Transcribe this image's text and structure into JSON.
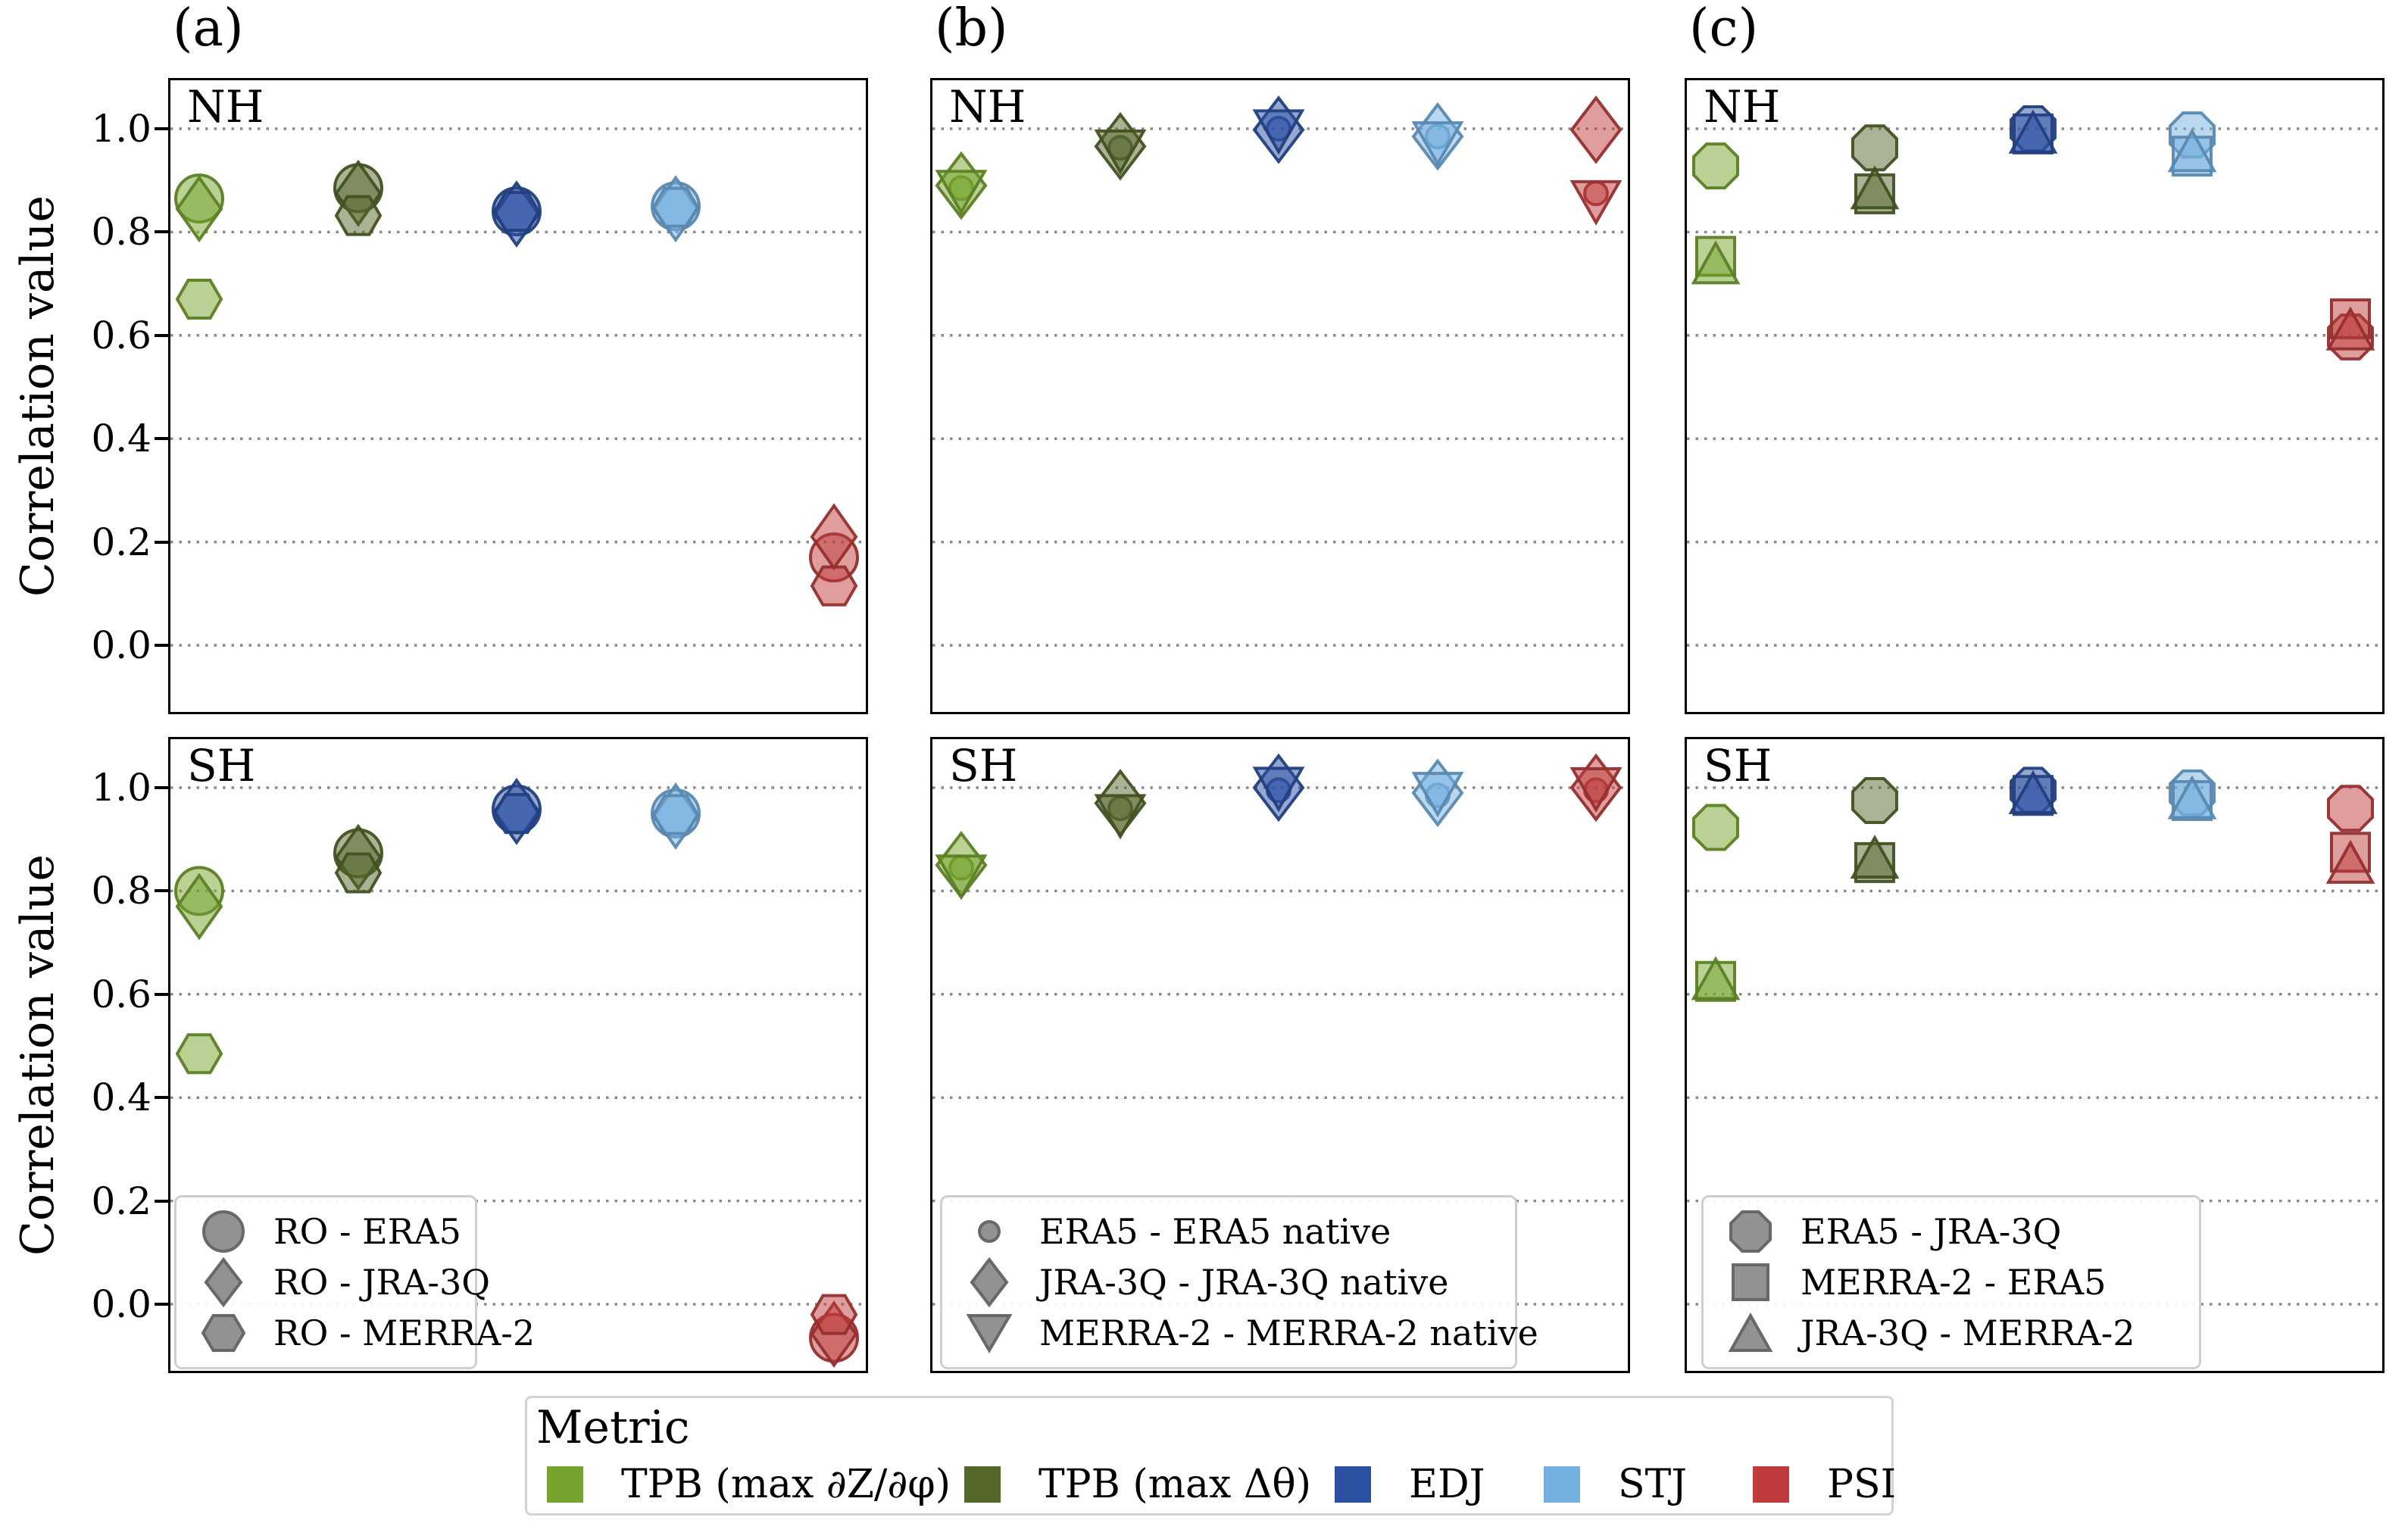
{
  "figure": {
    "ylabel": "Correlation value",
    "columns": [
      {
        "label": "(a)"
      },
      {
        "label": "(b)"
      },
      {
        "label": "(c)"
      }
    ]
  },
  "yaxis": {
    "ticks": [
      {
        "label": "1.0",
        "value": 1.0
      },
      {
        "label": "0.8",
        "value": 0.8
      },
      {
        "label": "0.6",
        "value": 0.6
      },
      {
        "label": "0.4",
        "value": 0.4
      },
      {
        "label": "0.2",
        "value": 0.2
      },
      {
        "label": "0.0",
        "value": 0.0
      }
    ]
  },
  "colors": {
    "tpb_phi": "#76A32D",
    "tpb_theta": "#55682B",
    "edj": "#2B51A3",
    "stj": "#74AFE0",
    "psi": "#BF3C3C",
    "legend_gray": "#7f7f7f",
    "grid": "#8a8a8a"
  },
  "marker_legends": {
    "a": [
      {
        "marker": "circle",
        "label": "RO - ERA5"
      },
      {
        "marker": "diamond",
        "label": "RO - JRA-3Q"
      },
      {
        "marker": "hexagon",
        "label": "RO - MERRA-2"
      }
    ],
    "b": [
      {
        "marker": "circle_small",
        "label": "ERA5 - ERA5 native"
      },
      {
        "marker": "diamond",
        "label": "JRA-3Q - JRA-3Q native"
      },
      {
        "marker": "triangle_down",
        "label": "MERRA-2 - MERRA-2 native"
      }
    ],
    "c": [
      {
        "marker": "octagon",
        "label": "ERA5 - JRA-3Q"
      },
      {
        "marker": "square",
        "label": "MERRA-2 - ERA5"
      },
      {
        "marker": "triangle_up",
        "label": "JRA-3Q - MERRA-2"
      }
    ]
  },
  "metric_legend": {
    "title": "Metric",
    "items": [
      {
        "label": "TPB (max ∂Z/∂φ)",
        "color": "#76A32D"
      },
      {
        "label": "TPB (max Δθ)",
        "color": "#55682B"
      },
      {
        "label": "EDJ",
        "color": "#2B51A3"
      },
      {
        "label": "STJ",
        "color": "#74AFE0"
      },
      {
        "label": "PSI",
        "color": "#BF3C3C"
      }
    ]
  },
  "chart_data": [
    {
      "type": "scatter",
      "panel": "(a)",
      "hemisphere": "NH",
      "x_categories": [
        "TPB (max ∂Z/∂φ)",
        "TPB (max Δθ)",
        "EDJ",
        "STJ",
        "PSI"
      ],
      "ylim": [
        -0.13,
        1.1
      ],
      "grid": "horizontal dotted",
      "series": [
        {
          "name": "RO - ERA5",
          "marker": "circle",
          "size": [
            62,
            62
          ],
          "values": [
            0.865,
            0.885,
            0.84,
            0.85,
            0.17
          ]
        },
        {
          "name": "RO - JRA-3Q",
          "marker": "diamond",
          "size": [
            58,
            82
          ],
          "values": [
            0.845,
            0.875,
            0.835,
            0.845,
            0.21
          ]
        },
        {
          "name": "RO - MERRA-2",
          "marker": "hexagon",
          "size": [
            58,
            50
          ],
          "values": [
            0.67,
            0.832,
            0.84,
            0.848,
            0.115
          ]
        }
      ]
    },
    {
      "type": "scatter",
      "panel": "(b)",
      "hemisphere": "NH",
      "x_categories": [
        "TPB (max ∂Z/∂φ)",
        "TPB (max Δθ)",
        "EDJ",
        "STJ",
        "PSI"
      ],
      "ylim": [
        -0.13,
        1.1
      ],
      "grid": "horizontal dotted",
      "series": [
        {
          "name": "ERA5 - ERA5 native",
          "marker": "circle_small",
          "size": [
            30,
            30
          ],
          "values": [
            0.885,
            0.963,
            1.0,
            0.985,
            0.875
          ]
        },
        {
          "name": "JRA-3Q - JRA-3Q native",
          "marker": "diamond",
          "size": [
            64,
            84
          ],
          "values": [
            0.89,
            0.966,
            0.998,
            0.985,
            0.998
          ]
        },
        {
          "name": "MERRA-2 - MERRA-2 native",
          "marker": "triangle_down",
          "size": [
            62,
            54
          ],
          "values": [
            0.878,
            0.956,
            0.995,
            0.972,
            0.858
          ]
        }
      ]
    },
    {
      "type": "scatter",
      "panel": "(c)",
      "hemisphere": "NH",
      "x_categories": [
        "TPB (max ∂Z/∂φ)",
        "TPB (max Δθ)",
        "EDJ",
        "STJ",
        "PSI"
      ],
      "ylim": [
        -0.13,
        1.1
      ],
      "grid": "horizontal dotted",
      "series": [
        {
          "name": "ERA5 - JRA-3Q",
          "marker": "octagon",
          "size": [
            58,
            58
          ],
          "values": [
            0.928,
            0.963,
            1.0,
            0.988,
            0.597
          ]
        },
        {
          "name": "MERRA-2 - ERA5",
          "marker": "square",
          "size": [
            50,
            50
          ],
          "values": [
            0.753,
            0.874,
            0.99,
            0.947,
            0.632
          ]
        },
        {
          "name": "JRA-3Q - MERRA-2",
          "marker": "triangle_up",
          "size": [
            58,
            52
          ],
          "values": [
            0.74,
            0.885,
            0.993,
            0.957,
            0.612
          ]
        }
      ]
    },
    {
      "type": "scatter",
      "panel": "(a)",
      "hemisphere": "SH",
      "x_categories": [
        "TPB (max ∂Z/∂φ)",
        "TPB (max Δθ)",
        "EDJ",
        "STJ",
        "PSI"
      ],
      "ylim": [
        -0.13,
        1.1
      ],
      "grid": "horizontal dotted",
      "series": [
        {
          "name": "RO - ERA5",
          "marker": "circle",
          "size": [
            62,
            62
          ],
          "values": [
            0.8,
            0.873,
            0.958,
            0.95,
            -0.065
          ]
        },
        {
          "name": "RO - JRA-3Q",
          "marker": "diamond",
          "size": [
            58,
            82
          ],
          "values": [
            0.77,
            0.865,
            0.954,
            0.945,
            -0.058
          ]
        },
        {
          "name": "RO - MERRA-2",
          "marker": "hexagon",
          "size": [
            58,
            50
          ],
          "values": [
            0.485,
            0.835,
            0.95,
            0.948,
            -0.02
          ]
        }
      ]
    },
    {
      "type": "scatter",
      "panel": "(b)",
      "hemisphere": "SH",
      "x_categories": [
        "TPB (max ∂Z/∂φ)",
        "TPB (max Δθ)",
        "EDJ",
        "STJ",
        "PSI"
      ],
      "ylim": [
        -0.13,
        1.1
      ],
      "grid": "horizontal dotted",
      "series": [
        {
          "name": "ERA5 - ERA5 native",
          "marker": "circle_small",
          "size": [
            30,
            30
          ],
          "values": [
            0.845,
            0.96,
            0.995,
            0.985,
            0.995
          ]
        },
        {
          "name": "JRA-3Q - JRA-3Q native",
          "marker": "diamond",
          "size": [
            64,
            84
          ],
          "values": [
            0.85,
            0.97,
            1.0,
            0.99,
            1.0
          ]
        },
        {
          "name": "MERRA-2 - MERRA-2 native",
          "marker": "triangle_down",
          "size": [
            62,
            54
          ],
          "values": [
            0.828,
            0.945,
            0.998,
            0.988,
            0.997
          ]
        }
      ]
    },
    {
      "type": "scatter",
      "panel": "(c)",
      "hemisphere": "SH",
      "x_categories": [
        "TPB (max ∂Z/∂φ)",
        "TPB (max Δθ)",
        "EDJ",
        "STJ",
        "PSI"
      ],
      "ylim": [
        -0.13,
        1.1
      ],
      "grid": "horizontal dotted",
      "series": [
        {
          "name": "ERA5 - JRA-3Q",
          "marker": "octagon",
          "size": [
            58,
            58
          ],
          "values": [
            0.923,
            0.975,
            0.995,
            0.99,
            0.96
          ]
        },
        {
          "name": "MERRA-2 - ERA5",
          "marker": "square",
          "size": [
            50,
            50
          ],
          "values": [
            0.625,
            0.855,
            0.985,
            0.975,
            0.875
          ]
        },
        {
          "name": "JRA-3Q - MERRA-2",
          "marker": "triangle_up",
          "size": [
            58,
            52
          ],
          "values": [
            0.63,
            0.865,
            0.99,
            0.98,
            0.855
          ]
        }
      ]
    }
  ]
}
